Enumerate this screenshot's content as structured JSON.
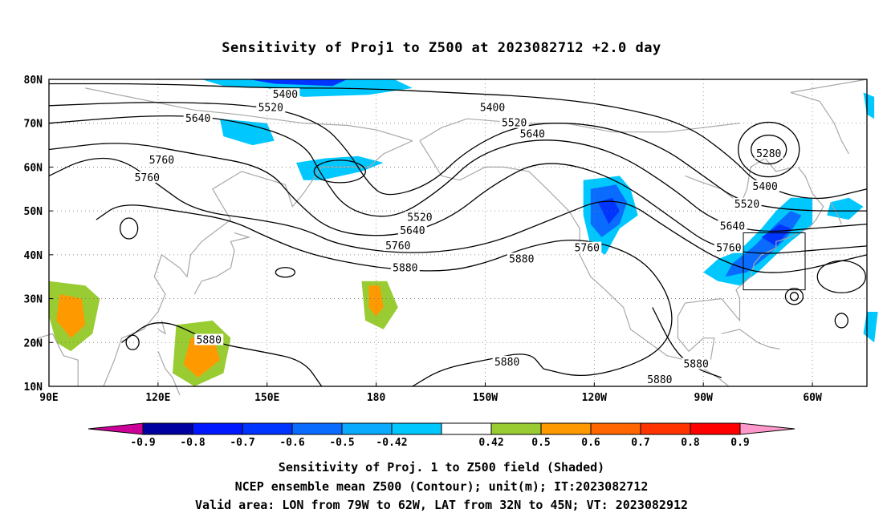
{
  "title": "Sensitivity of Proj1 to Z500 at 2023082712 +2.0 day",
  "map": {
    "lat_ticks": [
      "80N",
      "70N",
      "60N",
      "50N",
      "40N",
      "30N",
      "20N",
      "10N"
    ],
    "lon_ticks": [
      "90E",
      "120E",
      "150E",
      "180",
      "150W",
      "120W",
      "90W",
      "60W"
    ],
    "contour_color": "#000000",
    "coast_color": "#a8a8a8",
    "contour_labels": [
      {
        "text": "5400",
        "lon": 155,
        "lat": 76.5
      },
      {
        "text": "5520",
        "lon": 151,
        "lat": 73.5
      },
      {
        "text": "5640",
        "lon": 131,
        "lat": 71
      },
      {
        "text": "5760",
        "lon": 121,
        "lat": 61.5
      },
      {
        "text": "5760",
        "lon": 117,
        "lat": 57.5
      },
      {
        "text": "5520",
        "lon": -168,
        "lat": 48.5
      },
      {
        "text": "5640",
        "lon": -170,
        "lat": 45.5
      },
      {
        "text": "5760",
        "lon": -174,
        "lat": 42
      },
      {
        "text": "5880",
        "lon": -172,
        "lat": 37
      },
      {
        "text": "5400",
        "lon": -148,
        "lat": 73.5
      },
      {
        "text": "5520",
        "lon": -142,
        "lat": 70
      },
      {
        "text": "5640",
        "lon": -137,
        "lat": 67.5
      },
      {
        "text": "5280",
        "lon": -72,
        "lat": 63
      },
      {
        "text": "5400",
        "lon": -73,
        "lat": 55.5
      },
      {
        "text": "5520",
        "lon": -78,
        "lat": 51.5
      },
      {
        "text": "5640",
        "lon": -82,
        "lat": 46.5
      },
      {
        "text": "5760",
        "lon": -83,
        "lat": 41.5
      },
      {
        "text": "5760",
        "lon": -122,
        "lat": 41.5
      },
      {
        "text": "5880",
        "lon": -140,
        "lat": 39
      },
      {
        "text": "5880",
        "lon": 134,
        "lat": 20.5
      },
      {
        "text": "5880",
        "lon": -144,
        "lat": 15.5
      },
      {
        "text": "5880",
        "lon": -92,
        "lat": 15
      },
      {
        "text": "5880",
        "lon": -102,
        "lat": 11.5
      }
    ],
    "valid_box": {
      "lon_min": -79,
      "lon_max": -62,
      "lat_min": 32,
      "lat_max": 45
    }
  },
  "colorbar": {
    "labels": [
      "-0.9",
      "-0.8",
      "-0.7",
      "-0.6",
      "-0.5",
      "-0.42",
      "0.42",
      "0.5",
      "0.6",
      "0.7",
      "0.8",
      "0.9"
    ],
    "colors": [
      "#0000a0",
      "#0018ff",
      "#0034ff",
      "#0a6cff",
      "#0aaaff",
      "#00c8ff",
      "#ffffff",
      "#99cc33",
      "#ff9900",
      "#ff6600",
      "#ff3300",
      "#ff0000"
    ],
    "low_extend_color": "#cc0099",
    "high_extend_color": "#ff99cc"
  },
  "captions": [
    "Sensitivity of Proj. 1 to Z500 field (Shaded)",
    "NCEP ensemble mean Z500 (Contour); unit(m); IT:2023082712",
    "Valid area: LON from 79W to 62W, LAT from 32N to 45N; VT: 2023082912"
  ]
}
